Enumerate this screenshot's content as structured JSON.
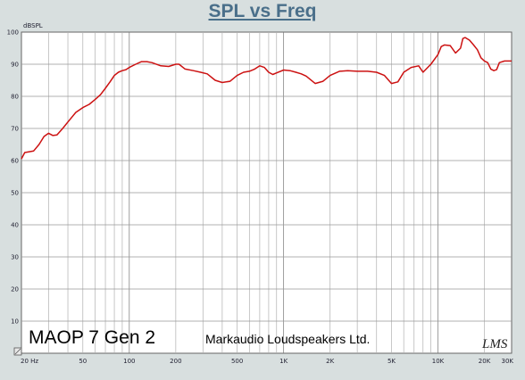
{
  "chart_data": {
    "type": "line",
    "title": "SPL vs Freq",
    "ylabel": "dBSPL",
    "xlabel": "",
    "x_scale": "log",
    "xlim": [
      20,
      30000
    ],
    "ylim": [
      0,
      100
    ],
    "grid": true,
    "y_ticks": [
      10,
      20,
      30,
      40,
      50,
      60,
      70,
      80,
      90,
      100
    ],
    "x_tick_labels": [
      {
        "value": 20,
        "label": "20 Hz"
      },
      {
        "value": 50,
        "label": "50"
      },
      {
        "value": 100,
        "label": "100"
      },
      {
        "value": 200,
        "label": "200"
      },
      {
        "value": 500,
        "label": "500"
      },
      {
        "value": 1000,
        "label": "1K"
      },
      {
        "value": 2000,
        "label": "2K"
      },
      {
        "value": 5000,
        "label": "5K"
      },
      {
        "value": 10000,
        "label": "10K"
      },
      {
        "value": 20000,
        "label": "20K"
      },
      {
        "value": 30000,
        "label": "30K"
      }
    ],
    "series": [
      {
        "color": "#cc1111",
        "x": [
          20,
          21,
          24,
          26,
          28,
          30,
          32,
          34,
          37,
          40,
          45,
          50,
          55,
          60,
          65,
          70,
          75,
          80,
          85,
          90,
          95,
          100,
          110,
          120,
          130,
          140,
          160,
          180,
          200,
          210,
          230,
          260,
          290,
          320,
          360,
          400,
          450,
          500,
          550,
          600,
          650,
          700,
          750,
          800,
          850,
          900,
          1000,
          1100,
          1200,
          1300,
          1400,
          1600,
          1800,
          2000,
          2300,
          2600,
          3000,
          3500,
          4000,
          4500,
          5000,
          5500,
          6000,
          6700,
          7500,
          8000,
          9000,
          10000,
          10500,
          11000,
          12000,
          13000,
          14000,
          14500,
          15000,
          16000,
          17000,
          18000,
          19000,
          20000,
          21000,
          22000,
          23000,
          24000,
          25000,
          27000,
          30000
        ],
        "y": [
          60.5,
          62.5,
          63.0,
          65.0,
          67.5,
          68.5,
          67.8,
          68.0,
          70.0,
          72.0,
          75.0,
          76.5,
          77.5,
          79.0,
          80.5,
          82.5,
          84.5,
          86.5,
          87.5,
          88.0,
          88.3,
          89.0,
          90.0,
          90.8,
          90.8,
          90.5,
          89.5,
          89.3,
          90.0,
          90.0,
          88.5,
          88.0,
          87.5,
          87.0,
          85.0,
          84.3,
          84.7,
          86.5,
          87.5,
          87.8,
          88.5,
          89.5,
          89.0,
          87.5,
          86.8,
          87.3,
          88.2,
          88.0,
          87.5,
          87.0,
          86.3,
          84.0,
          84.7,
          86.5,
          87.8,
          88.0,
          87.8,
          87.8,
          87.5,
          86.5,
          84.0,
          84.5,
          87.5,
          89.0,
          89.5,
          87.5,
          90.0,
          93.0,
          95.5,
          96.0,
          95.8,
          93.5,
          95.0,
          98.0,
          98.3,
          97.5,
          96.0,
          94.5,
          92.0,
          91.0,
          90.5,
          88.5,
          88.0,
          88.3,
          90.5,
          91.0,
          91.0
        ]
      }
    ]
  },
  "annotations": {
    "model": "MAOP 7 Gen 2",
    "maker": "Markaudio Loudspeakers Ltd.",
    "signature": "LMS"
  }
}
